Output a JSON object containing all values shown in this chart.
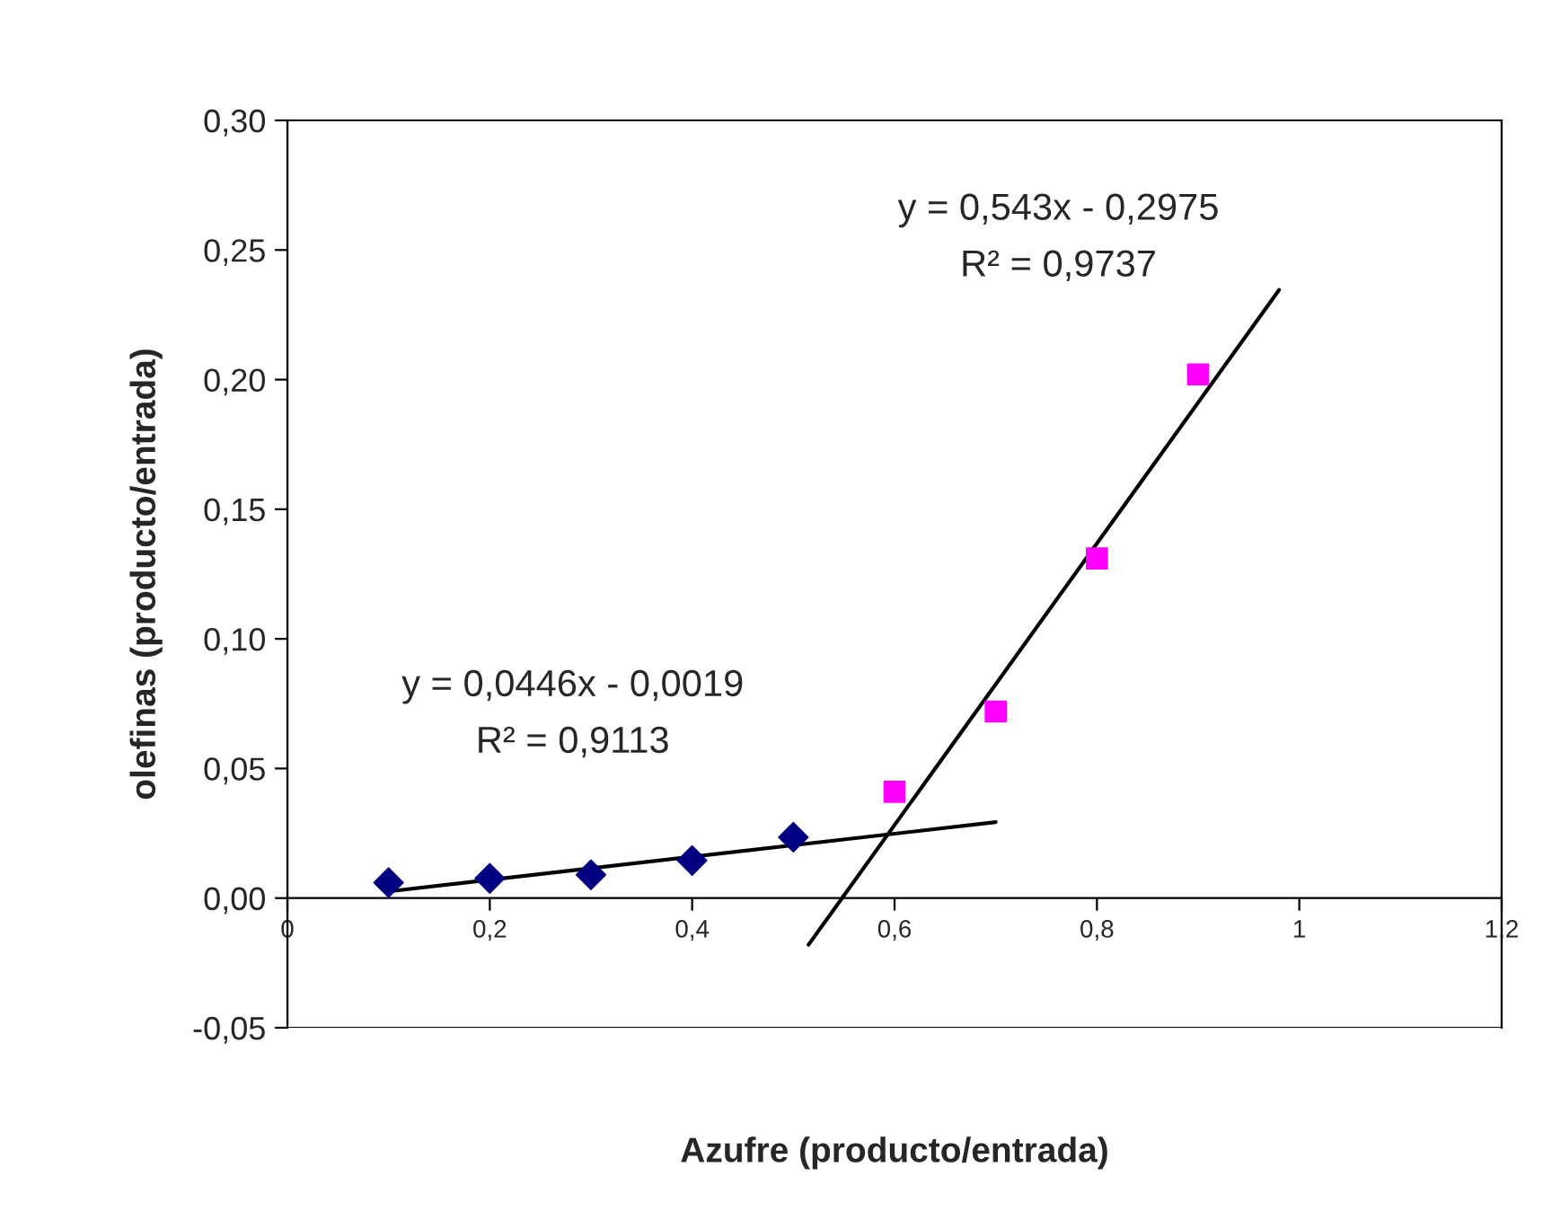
{
  "chart_data": {
    "type": "scatter",
    "xlabel": "Azufre (producto/entrada)",
    "ylabel": "olefinas (producto/entrada)",
    "series": [
      {
        "color": "#000080",
        "marker": "diamond",
        "x": [
          0.1,
          0.2,
          0.3,
          0.4,
          0.5
        ],
        "values": [
          0.006,
          0.0076,
          0.009,
          0.0145,
          0.0235
        ]
      },
      {
        "color": "#ff00ff",
        "marker": "square",
        "x": [
          0.6,
          0.7,
          0.8,
          0.9
        ],
        "values": [
          0.041,
          0.072,
          0.131,
          0.202
        ]
      },
      {
        "type": "line",
        "color": "#000000",
        "marker": "none",
        "x": [
          0.1,
          0.7
        ],
        "values": [
          0.0026,
          0.0293
        ]
      },
      {
        "type": "line",
        "color": "#000000",
        "marker": "none",
        "x": [
          0.515,
          0.98
        ],
        "values": [
          -0.018,
          0.2346
        ]
      }
    ],
    "annotations": [
      "y = 0,0446x - 0,0019\nR² = 0,9113",
      "y = 0,543x - 0,2975\nR² = 0,9737"
    ],
    "xlim": [
      0,
      1.2
    ],
    "ylim": [
      -0.05,
      0.3
    ],
    "xticks": [
      0,
      {
        "value": 0.2,
        "label": "0,2"
      },
      {
        "value": 0.4,
        "label": "0,4"
      },
      {
        "value": 0.6,
        "label": "0,6"
      },
      {
        "value": 0.8,
        "label": "0,8"
      },
      1,
      {
        "value": 1.2,
        "label": "1,2"
      }
    ],
    "yticks": [
      {
        "value": -0.05,
        "label": "-0,05"
      },
      {
        "value": 0,
        "label": "0,00"
      },
      {
        "value": 0.05,
        "label": "0,05"
      },
      {
        "value": 0.1,
        "label": "0,10"
      },
      {
        "value": 0.15,
        "label": "0,15"
      },
      {
        "value": 0.2,
        "label": "0,20"
      },
      {
        "value": 0.25,
        "label": "0,25"
      },
      {
        "value": 0.3,
        "label": "0,30"
      }
    ],
    "grid": false,
    "legend": false
  }
}
